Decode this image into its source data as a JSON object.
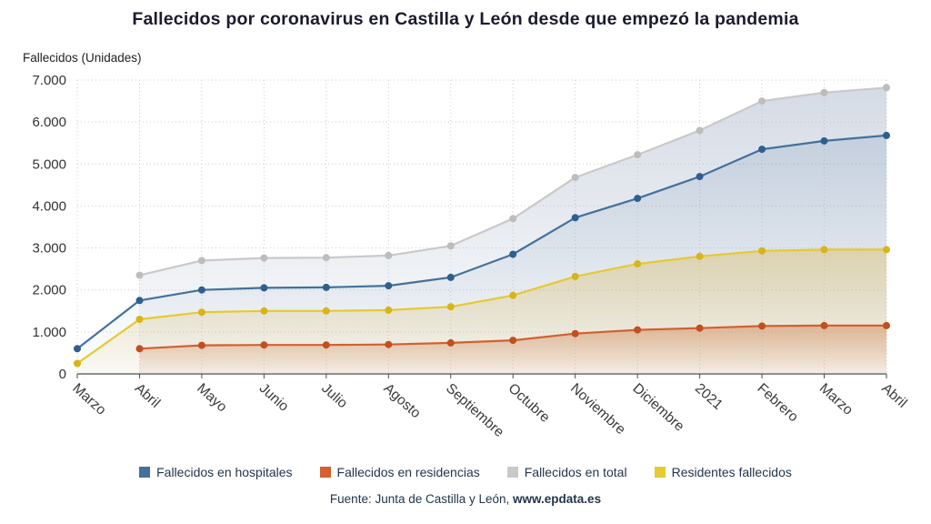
{
  "title": "Fallecidos por coronavirus en Castilla y León desde que empezó la pandemia",
  "y_axis_title": "Fallecidos (Unidades)",
  "footer": {
    "source_prefix": "Fuente: Junta de Castilla y León, ",
    "source_link": "www.epdata.es"
  },
  "chart_data": {
    "type": "line",
    "title": "Fallecidos por coronavirus en Castilla y León desde que empezó la pandemia",
    "ylabel": "Fallecidos (Unidades)",
    "ylim": [
      0,
      7000
    ],
    "y_ticks": [
      "0",
      "1.000",
      "2.000",
      "3.000",
      "4.000",
      "5.000",
      "6.000",
      "7.000"
    ],
    "grid": "dotted",
    "legend_position": "bottom",
    "categories": [
      "Marzo",
      "Abril",
      "Mayo",
      "Junio",
      "Julio",
      "Agosto",
      "Septiembre",
      "Octubre",
      "Noviembre",
      "Diciembre",
      "2021",
      "Febrero",
      "Marzo",
      "Abril"
    ],
    "series": [
      {
        "name": "Fallecidos en hospitales",
        "color": "#44719c",
        "dot_color": "#2f5f8f",
        "fill_top": "rgba(90,130,170,0.18)",
        "fill_bottom": "rgba(90,130,170,0.02)",
        "values": [
          600,
          1750,
          2000,
          2050,
          2060,
          2100,
          2300,
          2850,
          3720,
          4180,
          4700,
          5350,
          5550,
          5680
        ]
      },
      {
        "name": "Fallecidos en residencias",
        "color": "#d4602f",
        "dot_color": "#c0501f",
        "fill_top": "rgba(205,125,70,0.45)",
        "fill_bottom": "rgba(205,125,70,0.08)",
        "values": [
          null,
          600,
          680,
          690,
          690,
          700,
          740,
          800,
          960,
          1050,
          1090,
          1140,
          1150,
          1150
        ]
      },
      {
        "name": "Fallecidos en total",
        "color": "#c9c9c9",
        "dot_color": "#bdbdbd",
        "fill_top": "rgba(150,165,190,0.40)",
        "fill_bottom": "rgba(150,165,190,0.02)",
        "values": [
          null,
          2350,
          2700,
          2760,
          2770,
          2820,
          3050,
          3700,
          4680,
          5220,
          5800,
          6500,
          6700,
          6820
        ]
      },
      {
        "name": "Residentes fallecidos",
        "color": "#e7c930",
        "dot_color": "#d8b41c",
        "fill_top": "rgba(220,190,105,0.45)",
        "fill_bottom": "rgba(220,190,105,0.06)",
        "values": [
          250,
          1300,
          1470,
          1500,
          1500,
          1520,
          1600,
          1870,
          2320,
          2620,
          2800,
          2930,
          2960,
          2960
        ]
      }
    ]
  }
}
